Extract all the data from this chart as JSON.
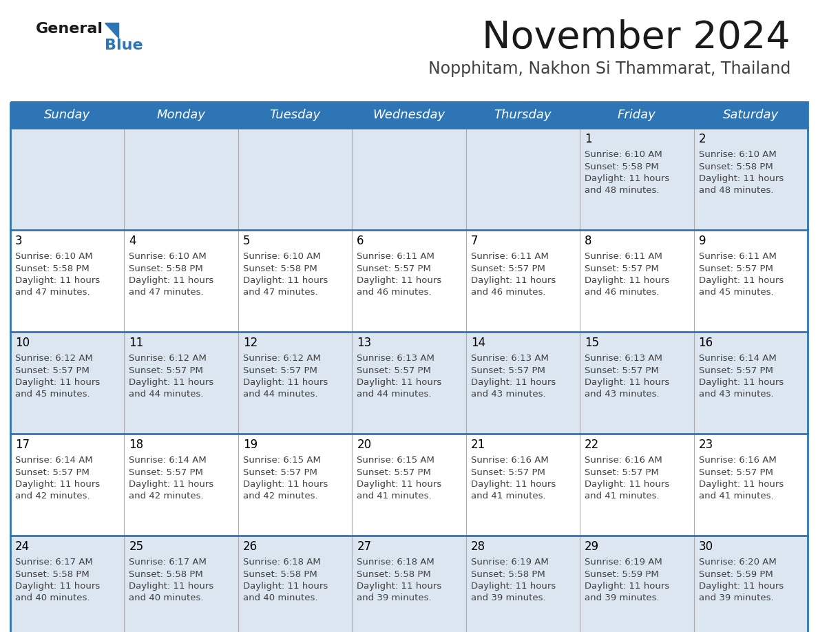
{
  "title": "November 2024",
  "subtitle": "Nopphitam, Nakhon Si Thammarat, Thailand",
  "days_of_week": [
    "Sunday",
    "Monday",
    "Tuesday",
    "Wednesday",
    "Thursday",
    "Friday",
    "Saturday"
  ],
  "header_bg": "#2E75B6",
  "header_text": "#FFFFFF",
  "row_odd_bg": "#DCE6F1",
  "row_even_bg": "#FFFFFF",
  "separator_color": "#2E75B6",
  "text_color": "#404040",
  "day_num_color": "#000000",
  "logo_general_color": "#1a1a1a",
  "logo_blue_color": "#2E75B6",
  "logo_triangle_color": "#2E75B6",
  "title_color": "#1a1a1a",
  "subtitle_color": "#404040",
  "calendar_data": [
    [
      null,
      null,
      null,
      null,
      null,
      {
        "day": 1,
        "sunrise": "6:10 AM",
        "sunset": "5:58 PM",
        "daylight": "11 hours and 48 minutes."
      },
      {
        "day": 2,
        "sunrise": "6:10 AM",
        "sunset": "5:58 PM",
        "daylight": "11 hours and 48 minutes."
      }
    ],
    [
      {
        "day": 3,
        "sunrise": "6:10 AM",
        "sunset": "5:58 PM",
        "daylight": "11 hours and 47 minutes."
      },
      {
        "day": 4,
        "sunrise": "6:10 AM",
        "sunset": "5:58 PM",
        "daylight": "11 hours and 47 minutes."
      },
      {
        "day": 5,
        "sunrise": "6:10 AM",
        "sunset": "5:58 PM",
        "daylight": "11 hours and 47 minutes."
      },
      {
        "day": 6,
        "sunrise": "6:11 AM",
        "sunset": "5:57 PM",
        "daylight": "11 hours and 46 minutes."
      },
      {
        "day": 7,
        "sunrise": "6:11 AM",
        "sunset": "5:57 PM",
        "daylight": "11 hours and 46 minutes."
      },
      {
        "day": 8,
        "sunrise": "6:11 AM",
        "sunset": "5:57 PM",
        "daylight": "11 hours and 46 minutes."
      },
      {
        "day": 9,
        "sunrise": "6:11 AM",
        "sunset": "5:57 PM",
        "daylight": "11 hours and 45 minutes."
      }
    ],
    [
      {
        "day": 10,
        "sunrise": "6:12 AM",
        "sunset": "5:57 PM",
        "daylight": "11 hours and 45 minutes."
      },
      {
        "day": 11,
        "sunrise": "6:12 AM",
        "sunset": "5:57 PM",
        "daylight": "11 hours and 44 minutes."
      },
      {
        "day": 12,
        "sunrise": "6:12 AM",
        "sunset": "5:57 PM",
        "daylight": "11 hours and 44 minutes."
      },
      {
        "day": 13,
        "sunrise": "6:13 AM",
        "sunset": "5:57 PM",
        "daylight": "11 hours and 44 minutes."
      },
      {
        "day": 14,
        "sunrise": "6:13 AM",
        "sunset": "5:57 PM",
        "daylight": "11 hours and 43 minutes."
      },
      {
        "day": 15,
        "sunrise": "6:13 AM",
        "sunset": "5:57 PM",
        "daylight": "11 hours and 43 minutes."
      },
      {
        "day": 16,
        "sunrise": "6:14 AM",
        "sunset": "5:57 PM",
        "daylight": "11 hours and 43 minutes."
      }
    ],
    [
      {
        "day": 17,
        "sunrise": "6:14 AM",
        "sunset": "5:57 PM",
        "daylight": "11 hours and 42 minutes."
      },
      {
        "day": 18,
        "sunrise": "6:14 AM",
        "sunset": "5:57 PM",
        "daylight": "11 hours and 42 minutes."
      },
      {
        "day": 19,
        "sunrise": "6:15 AM",
        "sunset": "5:57 PM",
        "daylight": "11 hours and 42 minutes."
      },
      {
        "day": 20,
        "sunrise": "6:15 AM",
        "sunset": "5:57 PM",
        "daylight": "11 hours and 41 minutes."
      },
      {
        "day": 21,
        "sunrise": "6:16 AM",
        "sunset": "5:57 PM",
        "daylight": "11 hours and 41 minutes."
      },
      {
        "day": 22,
        "sunrise": "6:16 AM",
        "sunset": "5:57 PM",
        "daylight": "11 hours and 41 minutes."
      },
      {
        "day": 23,
        "sunrise": "6:16 AM",
        "sunset": "5:57 PM",
        "daylight": "11 hours and 41 minutes."
      }
    ],
    [
      {
        "day": 24,
        "sunrise": "6:17 AM",
        "sunset": "5:58 PM",
        "daylight": "11 hours and 40 minutes."
      },
      {
        "day": 25,
        "sunrise": "6:17 AM",
        "sunset": "5:58 PM",
        "daylight": "11 hours and 40 minutes."
      },
      {
        "day": 26,
        "sunrise": "6:18 AM",
        "sunset": "5:58 PM",
        "daylight": "11 hours and 40 minutes."
      },
      {
        "day": 27,
        "sunrise": "6:18 AM",
        "sunset": "5:58 PM",
        "daylight": "11 hours and 39 minutes."
      },
      {
        "day": 28,
        "sunrise": "6:19 AM",
        "sunset": "5:58 PM",
        "daylight": "11 hours and 39 minutes."
      },
      {
        "day": 29,
        "sunrise": "6:19 AM",
        "sunset": "5:59 PM",
        "daylight": "11 hours and 39 minutes."
      },
      {
        "day": 30,
        "sunrise": "6:20 AM",
        "sunset": "5:59 PM",
        "daylight": "11 hours and 39 minutes."
      }
    ]
  ]
}
